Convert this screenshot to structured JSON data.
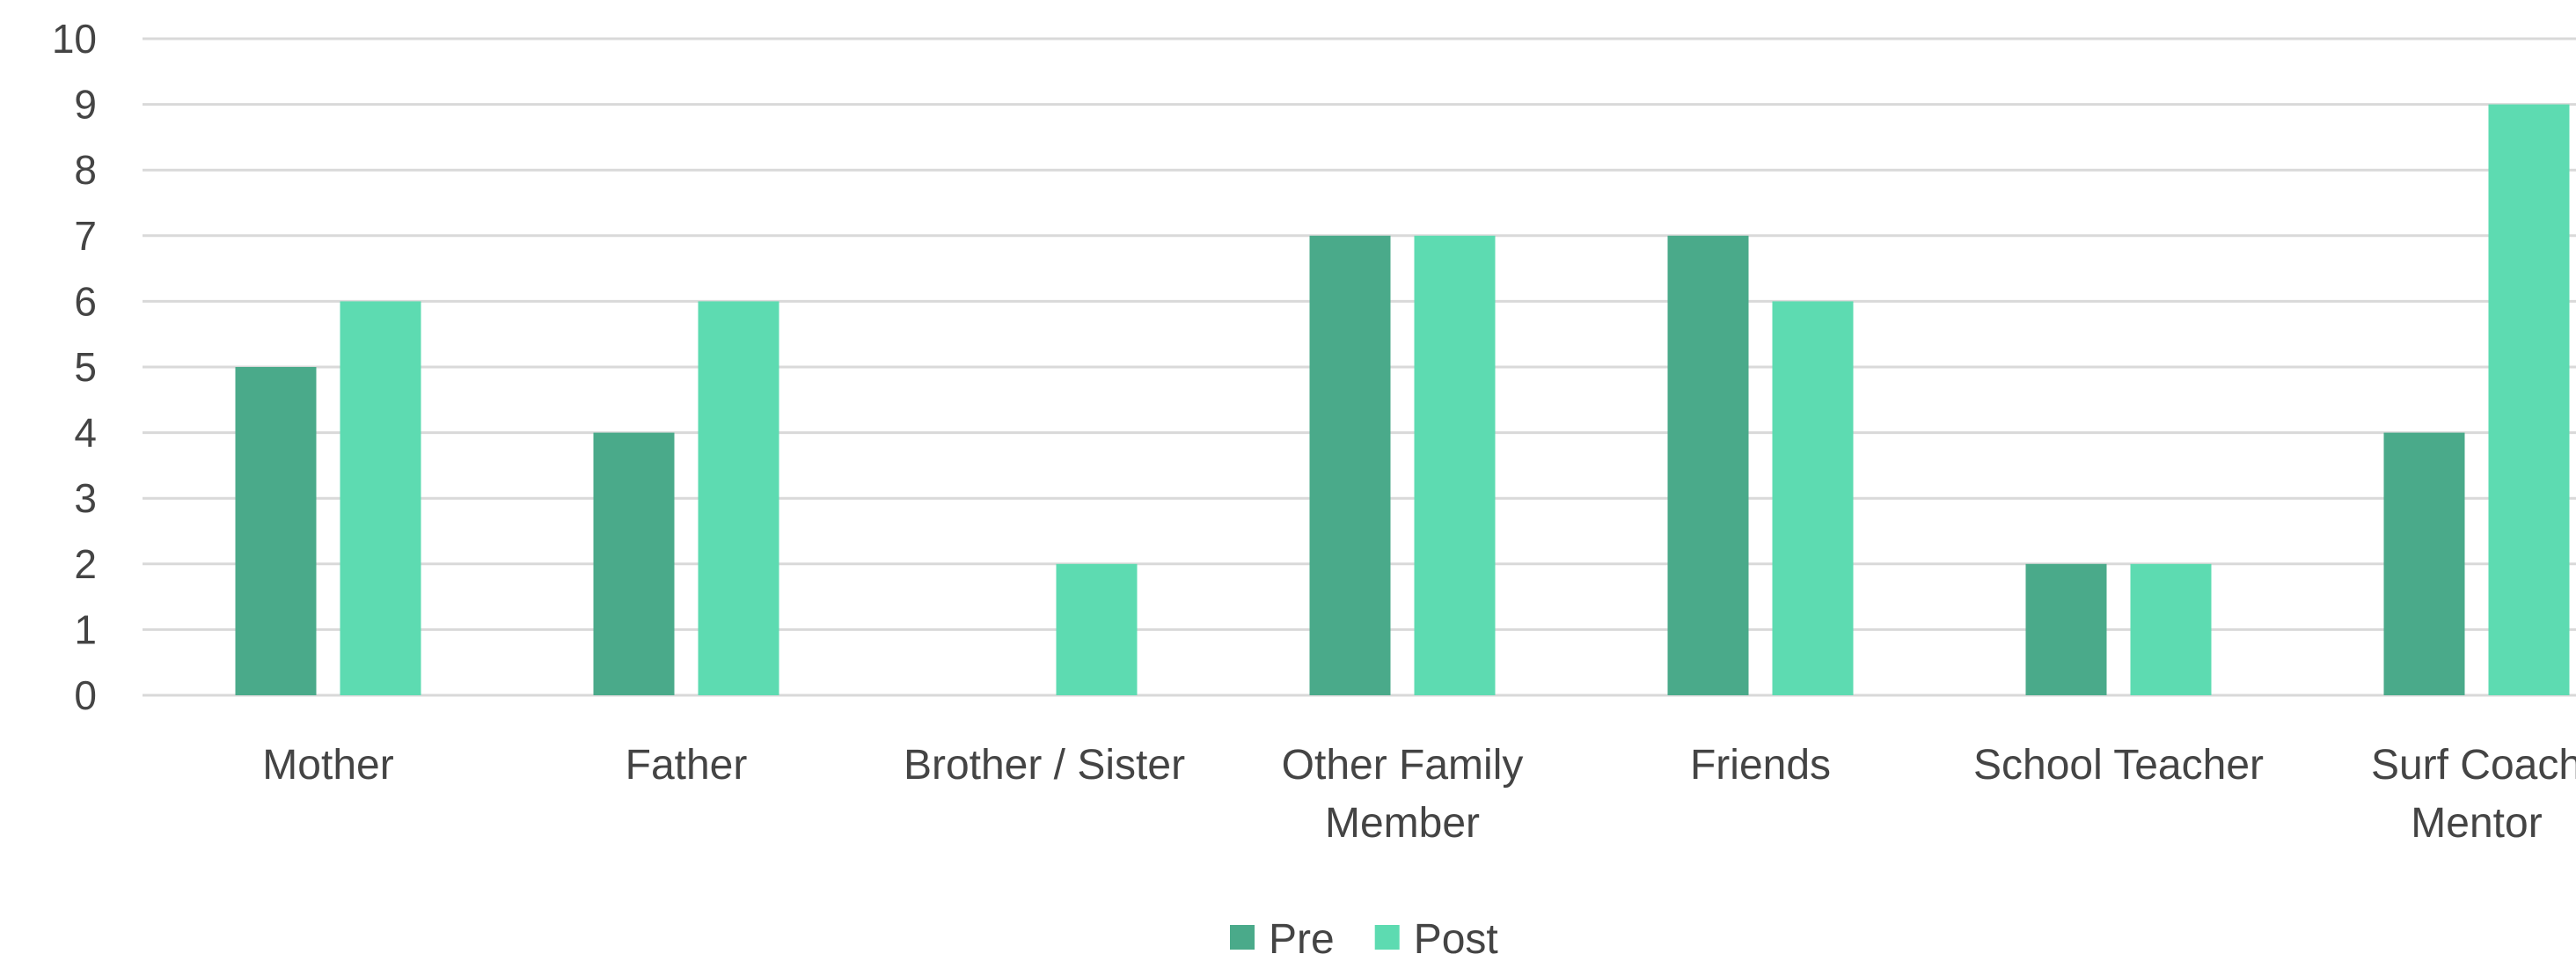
{
  "chart_data": {
    "type": "bar",
    "title": "",
    "xlabel": "",
    "ylabel": "",
    "categories": [
      [
        "Mother"
      ],
      [
        "Father"
      ],
      [
        "Brother / Sister"
      ],
      [
        "Other Family",
        "Member"
      ],
      [
        "Friends"
      ],
      [
        "School Teacher"
      ],
      [
        "Surf Coach",
        "Mentor"
      ]
    ],
    "series": [
      {
        "name": "Pre",
        "color": "#4aaa8a",
        "values": [
          5,
          4,
          0,
          7,
          7,
          2,
          4
        ]
      },
      {
        "name": "Post",
        "color": "#5ddbb1",
        "values": [
          6,
          6,
          2,
          7,
          6,
          2,
          9
        ]
      }
    ],
    "ylim": [
      0,
      10
    ],
    "yticks": [
      "0",
      "1",
      "2",
      "3",
      "4",
      "5",
      "6",
      "7",
      "8",
      "9",
      "10"
    ],
    "grid": true,
    "legend_position": "bottom"
  }
}
